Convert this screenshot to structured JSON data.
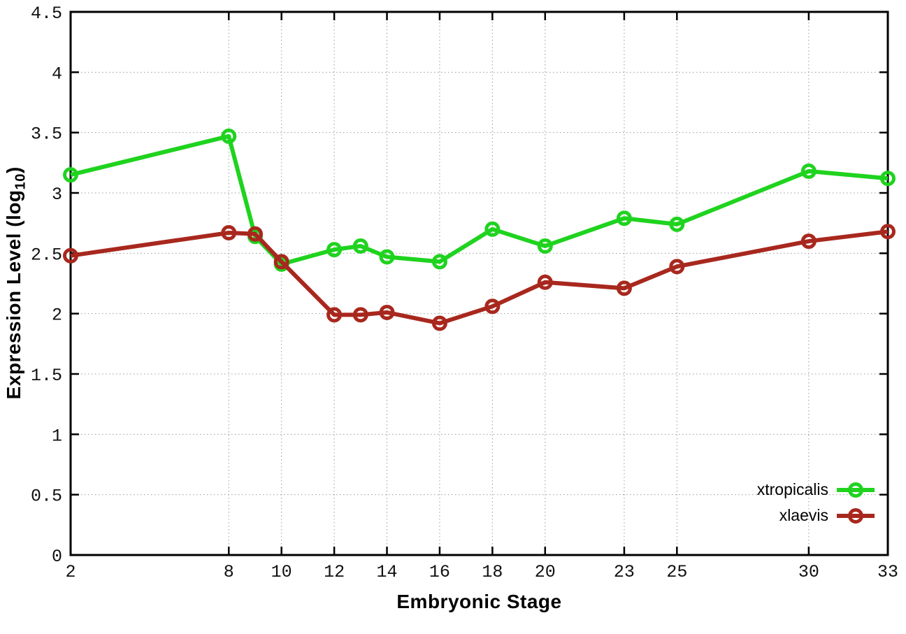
{
  "figure": {
    "xlabel": "Embryonic Stage",
    "ylabel_main": "Expression Level (log",
    "ylabel_sub": "10",
    "ylabel_close": ")"
  },
  "chart_data": {
    "type": "line",
    "title": "",
    "xlabel": "Embryonic Stage",
    "ylabel": "Expression Level (log10)",
    "x": [
      2,
      8,
      9,
      10,
      12,
      13,
      14,
      16,
      18,
      20,
      23,
      25,
      30,
      33
    ],
    "xticks": [
      2,
      8,
      10,
      12,
      14,
      16,
      18,
      20,
      23,
      25,
      30,
      33
    ],
    "yticks": [
      0,
      0.5,
      1,
      1.5,
      2,
      2.5,
      3,
      3.5,
      4,
      4.5
    ],
    "xlim": [
      2,
      33
    ],
    "ylim": [
      0,
      4.5
    ],
    "grid": true,
    "grid_style": "dotted",
    "grid_color": "#999999",
    "border_color": "#000000",
    "background_color": "#ffffff",
    "marker": "open-circle",
    "legend_position": "inside-bottom-right",
    "series": [
      {
        "name": "xtropicalis",
        "color": "#1fd31f",
        "values": [
          3.15,
          3.47,
          2.64,
          2.41,
          2.53,
          2.56,
          2.47,
          2.43,
          2.7,
          2.56,
          2.79,
          2.74,
          3.18,
          3.12
        ]
      },
      {
        "name": "xlaevis",
        "color": "#a8281e",
        "values": [
          2.48,
          2.67,
          2.66,
          2.43,
          1.99,
          1.99,
          2.01,
          1.92,
          2.06,
          2.26,
          2.21,
          2.39,
          2.6,
          2.68
        ]
      }
    ]
  }
}
